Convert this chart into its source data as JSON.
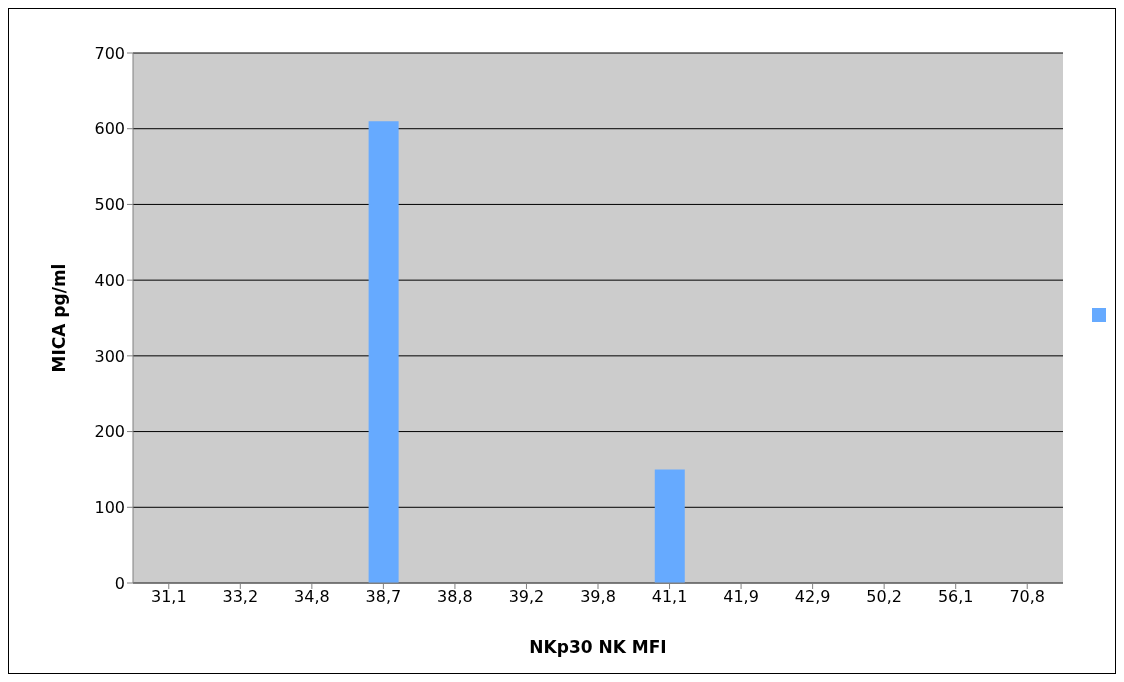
{
  "chart_data": {
    "type": "bar",
    "xlabel": "NKp30 NK MFI",
    "ylabel": "MICA pg/ml",
    "categories": [
      "31,1",
      "33,2",
      "34,8",
      "38,7",
      "38,8",
      "39,2",
      "39,8",
      "41,1",
      "41,9",
      "42,9",
      "50,2",
      "56,1",
      "70,8"
    ],
    "series": [
      {
        "color": "#66aaff",
        "values": [
          0,
          0,
          0,
          610,
          0,
          0,
          0,
          150,
          0,
          0,
          0,
          0,
          0
        ]
      }
    ],
    "ylim": [
      0,
      700
    ],
    "yticks": [
      0,
      100,
      200,
      300,
      400,
      500,
      600,
      700
    ],
    "grid": "y"
  }
}
